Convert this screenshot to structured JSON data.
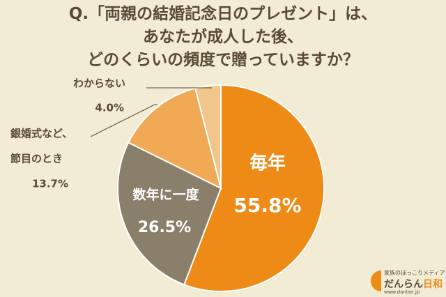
{
  "chart_data": {
    "type": "pie",
    "title": "Q.「両親の結婚記念日のプレゼント」は、あなたが成人した後、どのくらいの頻度で贈っていますか？",
    "title_lines": [
      "Q.「両親の結婚記念日のプレゼント」は、",
      "あなたが成人した後、",
      "どのくらいの頻度で贈っていますか？"
    ],
    "start": "12 o'clock",
    "direction": "clockwise",
    "slices": [
      {
        "label": "毎年",
        "label_lines": [
          "毎年"
        ],
        "value": 55.8,
        "value_label": "55.8%",
        "color": "#ee8a16",
        "label_position": "inside"
      },
      {
        "label": "数年に一度",
        "label_lines": [
          "数年に一度"
        ],
        "value": 26.5,
        "value_label": "26.5%",
        "color": "#8a7f6a",
        "label_position": "inside"
      },
      {
        "label": "銀婚式など、節目のとき",
        "label_lines": [
          "銀婚式など、",
          "節目のとき"
        ],
        "value": 13.7,
        "value_label": "13.7%",
        "color": "#f0aa55",
        "label_position": "outside"
      },
      {
        "label": "わからない",
        "label_lines": [
          "わからない"
        ],
        "value": 4.0,
        "value_label": "4.0%",
        "color": "#f2c68a",
        "label_position": "outside"
      }
    ]
  },
  "logo": {
    "tagline": "家族のほっこりメディア",
    "brand_prefix": "だんらん",
    "brand_suffix": "日和",
    "url": "www.danlan.jp"
  }
}
